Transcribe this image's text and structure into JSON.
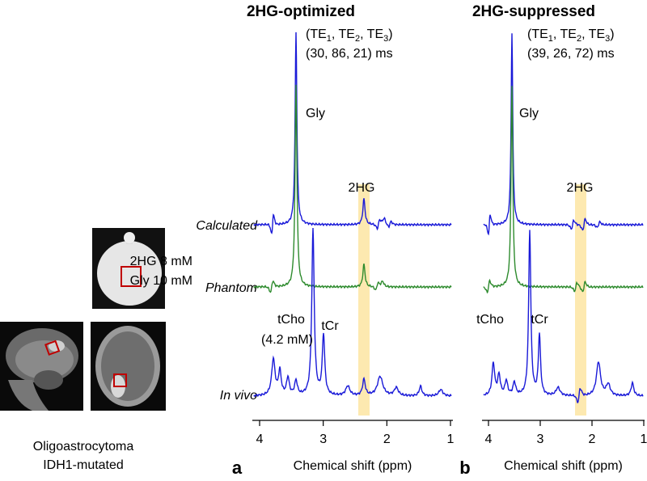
{
  "panels": [
    {
      "label": "a",
      "title": "2HG-optimized",
      "te_label": [
        "(TE",
        "1",
        ", TE",
        "2",
        ", TE",
        "3",
        ")"
      ],
      "te_values": "(30, 86, 21) ms",
      "peak_labels": {
        "gly": "Gly",
        "hg": "2HG",
        "tcho": "tCho",
        "tcho_conc": "(4.2 mM)",
        "tcr": "tCr"
      },
      "xticks": [
        4,
        3,
        2,
        1
      ],
      "xlabel": "Chemical shift  (ppm)"
    },
    {
      "label": "b",
      "title": "2HG-suppressed",
      "te_label": [
        "(TE",
        "1",
        ", TE",
        "2",
        ", TE",
        "3",
        ")"
      ],
      "te_values": "(39, 26, 72) ms",
      "peak_labels": {
        "gly": "Gly",
        "hg": "2HG",
        "tcho": "tCho",
        "tcr": "tCr"
      },
      "xticks": [
        4,
        3,
        2,
        1
      ],
      "xlabel": "Chemical shift  (ppm)"
    }
  ],
  "trace_labels": [
    "Calculated",
    "Phantom",
    "In vivo"
  ],
  "phantom": [
    "2HG 8 mM",
    "Gly 10 mM"
  ],
  "tumor": [
    "Oligoastrocytoma",
    "IDH1-mutated"
  ]
}
